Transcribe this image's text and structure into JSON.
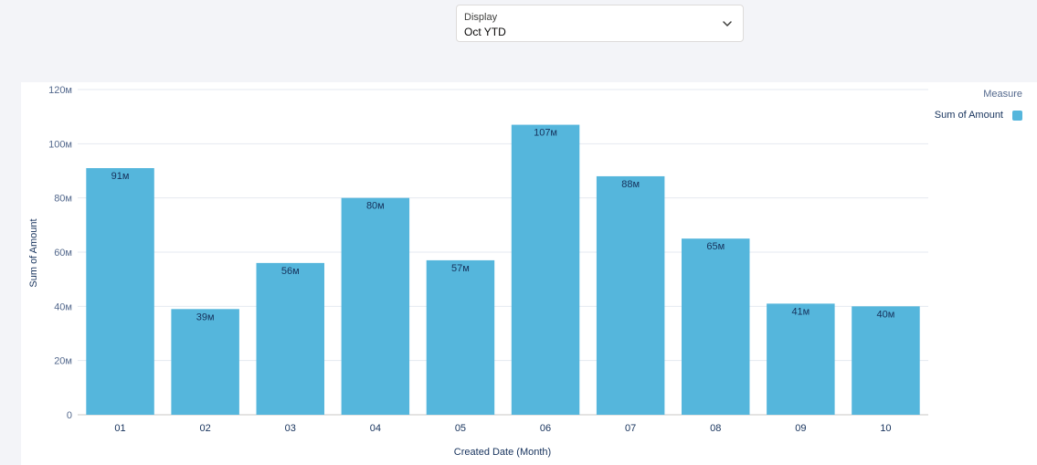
{
  "filter": {
    "label": "Display",
    "value": "Oct YTD"
  },
  "legend": {
    "title": "Measure",
    "item": "Sum of Amount",
    "color": "#55b6dc"
  },
  "chart_data": {
    "type": "bar",
    "categories": [
      "01",
      "02",
      "03",
      "04",
      "05",
      "06",
      "07",
      "08",
      "09",
      "10"
    ],
    "series": [
      {
        "name": "Sum of Amount",
        "values": [
          91,
          39,
          56,
          80,
          57,
          107,
          88,
          65,
          41,
          40
        ],
        "labels": [
          "91м",
          "39м",
          "56м",
          "80м",
          "57м",
          "107м",
          "88м",
          "65м",
          "41м",
          "40м"
        ]
      }
    ],
    "xlabel": "Created Date (Month)",
    "ylabel": "Sum of Amount",
    "ylim": [
      0,
      120
    ],
    "yticks": [
      0,
      20,
      40,
      60,
      80,
      100,
      120
    ],
    "ytick_labels": [
      "0",
      "20м",
      "40м",
      "60м",
      "80м",
      "100м",
      "120м"
    ],
    "grid": true,
    "legend_position": "top-right",
    "bar_color": "#55b6dc"
  }
}
